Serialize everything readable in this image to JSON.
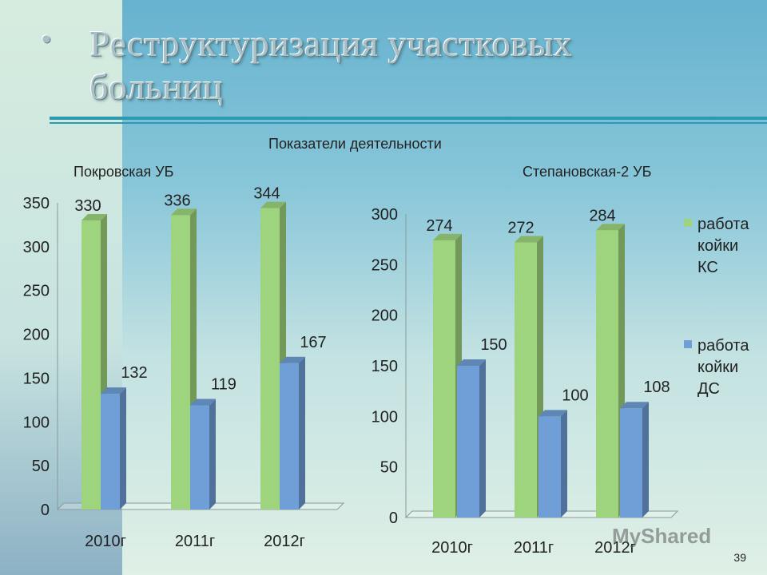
{
  "title": "Реструктуризация участковых больниц",
  "title_lines": [
    "Реструктуризация участковых",
    "больниц"
  ],
  "bullet": "•",
  "subtitle": "Показатели деятельности",
  "page_number": "39",
  "watermark": "MyShared",
  "colors": {
    "ks": "#9ed47d",
    "ds": "#6f9fd6"
  },
  "legend": {
    "ks_lines": [
      "работа",
      "койки",
      "КС"
    ],
    "ds_lines": [
      "работа",
      "койки",
      "ДС"
    ]
  },
  "chart_data": [
    {
      "type": "bar",
      "title": "Покровская УБ",
      "categories": [
        "2010г",
        "2011г",
        "2012г"
      ],
      "series": [
        {
          "name": "работа койки КС",
          "values": [
            330,
            336,
            344
          ]
        },
        {
          "name": "работа койки ДС",
          "values": [
            132,
            119,
            167
          ]
        }
      ],
      "ylim": [
        0,
        350
      ],
      "yticks": [
        0,
        50,
        100,
        150,
        200,
        250,
        300,
        350
      ],
      "xlabel": "",
      "ylabel": ""
    },
    {
      "type": "bar",
      "title": "Степановская-2 УБ",
      "categories": [
        "2010г",
        "2011г",
        "2012г"
      ],
      "series": [
        {
          "name": "работа койки КС",
          "values": [
            274,
            272,
            284
          ]
        },
        {
          "name": "работа койки ДС",
          "values": [
            150,
            100,
            108
          ]
        }
      ],
      "ylim": [
        0,
        300
      ],
      "yticks": [
        0,
        50,
        100,
        150,
        200,
        250,
        300
      ],
      "xlabel": "",
      "ylabel": "",
      "legend": "right"
    }
  ]
}
